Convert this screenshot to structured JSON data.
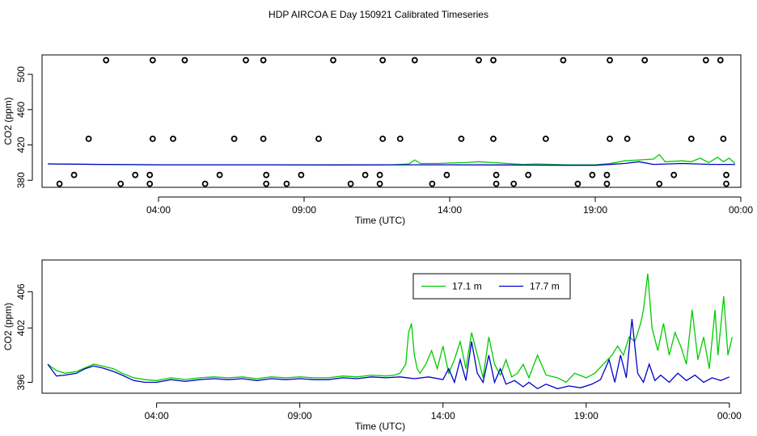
{
  "title": "HDP AIRCOA E  Day 150921  Calibrated Timeseries",
  "chart_data": [
    {
      "type": "line",
      "panel": "top",
      "xlabel": "Time (UTC)",
      "ylabel": "CO2 (ppm)",
      "x_unit": "hours UTC",
      "x_ticks": [
        4,
        9,
        14,
        19,
        24
      ],
      "x_tick_labels": [
        "04:00",
        "09:00",
        "14:00",
        "19:00",
        "00:00"
      ],
      "xlim": [
        0,
        24
      ],
      "y_ticks": [
        380,
        420,
        460,
        500
      ],
      "ylim": [
        372,
        522
      ],
      "grid": false,
      "series": [
        {
          "name": "17.1 m",
          "color": "#00cc00",
          "values": [
            [
              0.2,
              398.5
            ],
            [
              2,
              398
            ],
            [
              4,
              397.5
            ],
            [
              6,
              397.5
            ],
            [
              8,
              397.5
            ],
            [
              10,
              397.3
            ],
            [
              12,
              397.5
            ],
            [
              12.6,
              398.5
            ],
            [
              12.8,
              403
            ],
            [
              13,
              399
            ],
            [
              13.6,
              399
            ],
            [
              14,
              399.5
            ],
            [
              14.5,
              400
            ],
            [
              15,
              401
            ],
            [
              15.5,
              400
            ],
            [
              16,
              399
            ],
            [
              16.5,
              398
            ],
            [
              17,
              398.5
            ],
            [
              18,
              397.5
            ],
            [
              19,
              397.5
            ],
            [
              19.5,
              399
            ],
            [
              20,
              402
            ],
            [
              20.5,
              403
            ],
            [
              21,
              404
            ],
            [
              21.2,
              409
            ],
            [
              21.4,
              401
            ],
            [
              22,
              402
            ],
            [
              22.3,
              401
            ],
            [
              22.6,
              405
            ],
            [
              22.9,
              400
            ],
            [
              23.2,
              406
            ],
            [
              23.4,
              401
            ],
            [
              23.6,
              405
            ],
            [
              23.8,
              399
            ]
          ]
        },
        {
          "name": "17.7 m",
          "color": "#0000cc",
          "values": [
            [
              0.2,
              398.5
            ],
            [
              2,
              398
            ],
            [
              4,
              397.5
            ],
            [
              6,
              397.5
            ],
            [
              8,
              397.5
            ],
            [
              10,
              397.3
            ],
            [
              12,
              397.5
            ],
            [
              14,
              397.5
            ],
            [
              16,
              397.3
            ],
            [
              18,
              397
            ],
            [
              19,
              397
            ],
            [
              20,
              399
            ],
            [
              20.5,
              401
            ],
            [
              21,
              398
            ],
            [
              22,
              399
            ],
            [
              23,
              398
            ],
            [
              23.8,
              398
            ]
          ]
        }
      ],
      "points": [
        {
          "x": 0.6,
          "y": 376
        },
        {
          "x": 1.1,
          "y": 386
        },
        {
          "x": 1.6,
          "y": 427
        },
        {
          "x": 2.2,
          "y": 516
        },
        {
          "x": 2.7,
          "y": 376
        },
        {
          "x": 3.2,
          "y": 386
        },
        {
          "x": 3.7,
          "y": 386
        },
        {
          "x": 3.7,
          "y": 376
        },
        {
          "x": 3.8,
          "y": 427
        },
        {
          "x": 3.8,
          "y": 516
        },
        {
          "x": 4.5,
          "y": 427
        },
        {
          "x": 4.9,
          "y": 516
        },
        {
          "x": 5.6,
          "y": 376
        },
        {
          "x": 6.1,
          "y": 386
        },
        {
          "x": 6.6,
          "y": 427
        },
        {
          "x": 7.0,
          "y": 516
        },
        {
          "x": 7.6,
          "y": 516
        },
        {
          "x": 7.6,
          "y": 427
        },
        {
          "x": 7.7,
          "y": 386
        },
        {
          "x": 7.7,
          "y": 376
        },
        {
          "x": 8.4,
          "y": 376
        },
        {
          "x": 8.9,
          "y": 386
        },
        {
          "x": 9.5,
          "y": 427
        },
        {
          "x": 10.0,
          "y": 516
        },
        {
          "x": 10.6,
          "y": 376
        },
        {
          "x": 11.1,
          "y": 386
        },
        {
          "x": 11.6,
          "y": 386
        },
        {
          "x": 11.6,
          "y": 376
        },
        {
          "x": 11.7,
          "y": 427
        },
        {
          "x": 11.7,
          "y": 516
        },
        {
          "x": 12.3,
          "y": 427
        },
        {
          "x": 12.8,
          "y": 516
        },
        {
          "x": 13.4,
          "y": 376
        },
        {
          "x": 13.9,
          "y": 386
        },
        {
          "x": 14.4,
          "y": 427
        },
        {
          "x": 15.0,
          "y": 516
        },
        {
          "x": 15.5,
          "y": 516
        },
        {
          "x": 15.5,
          "y": 427
        },
        {
          "x": 15.6,
          "y": 386
        },
        {
          "x": 15.6,
          "y": 376
        },
        {
          "x": 16.2,
          "y": 376
        },
        {
          "x": 16.7,
          "y": 386
        },
        {
          "x": 17.3,
          "y": 427
        },
        {
          "x": 17.9,
          "y": 516
        },
        {
          "x": 18.4,
          "y": 376
        },
        {
          "x": 18.9,
          "y": 386
        },
        {
          "x": 19.4,
          "y": 386
        },
        {
          "x": 19.4,
          "y": 376
        },
        {
          "x": 19.5,
          "y": 427
        },
        {
          "x": 19.5,
          "y": 516
        },
        {
          "x": 20.1,
          "y": 427
        },
        {
          "x": 20.7,
          "y": 516
        },
        {
          "x": 21.2,
          "y": 376
        },
        {
          "x": 21.7,
          "y": 386
        },
        {
          "x": 22.3,
          "y": 427
        },
        {
          "x": 22.8,
          "y": 516
        },
        {
          "x": 23.3,
          "y": 516
        },
        {
          "x": 23.4,
          "y": 427
        },
        {
          "x": 23.5,
          "y": 386
        },
        {
          "x": 23.5,
          "y": 376
        }
      ]
    },
    {
      "type": "line",
      "panel": "bottom",
      "xlabel": "Time (UTC)",
      "ylabel": "CO2 (ppm)",
      "x_unit": "hours UTC",
      "x_ticks": [
        4,
        9,
        14,
        19,
        24
      ],
      "x_tick_labels": [
        "04:00",
        "09:00",
        "14:00",
        "19:00",
        "00:00"
      ],
      "xlim": [
        0,
        24.4
      ],
      "y_ticks": [
        396,
        402,
        406
      ],
      "ylim": [
        394.8,
        409.5
      ],
      "grid": false,
      "legend": {
        "position": "top-right-center",
        "entries": [
          "17.1 m",
          "17.7 m"
        ]
      },
      "series": [
        {
          "name": "17.1 m",
          "color": "#00cc00",
          "values": [
            [
              0.2,
              398.0
            ],
            [
              0.5,
              397.3
            ],
            [
              0.8,
              397.0
            ],
            [
              1.2,
              397.2
            ],
            [
              1.5,
              397.6
            ],
            [
              1.8,
              398.0
            ],
            [
              2.1,
              397.8
            ],
            [
              2.5,
              397.5
            ],
            [
              2.8,
              397.0
            ],
            [
              3.2,
              396.5
            ],
            [
              3.6,
              396.3
            ],
            [
              4.0,
              396.2
            ],
            [
              4.5,
              396.5
            ],
            [
              5.0,
              396.3
            ],
            [
              5.5,
              396.5
            ],
            [
              6.0,
              396.6
            ],
            [
              6.5,
              396.5
            ],
            [
              7.0,
              396.6
            ],
            [
              7.5,
              396.4
            ],
            [
              8.0,
              396.6
            ],
            [
              8.5,
              396.5
            ],
            [
              9.0,
              396.6
            ],
            [
              9.5,
              396.5
            ],
            [
              10.0,
              396.5
            ],
            [
              10.5,
              396.7
            ],
            [
              11.0,
              396.6
            ],
            [
              11.5,
              396.8
            ],
            [
              12.0,
              396.7
            ],
            [
              12.3,
              396.8
            ],
            [
              12.5,
              397.0
            ],
            [
              12.7,
              398.0
            ],
            [
              12.8,
              401.5
            ],
            [
              12.9,
              402.5
            ],
            [
              13.0,
              399.0
            ],
            [
              13.1,
              397.5
            ],
            [
              13.2,
              397.0
            ],
            [
              13.4,
              398.0
            ],
            [
              13.6,
              399.5
            ],
            [
              13.8,
              397.5
            ],
            [
              14.0,
              400.0
            ],
            [
              14.2,
              397.0
            ],
            [
              14.4,
              398.5
            ],
            [
              14.6,
              400.5
            ],
            [
              14.8,
              397.5
            ],
            [
              15.0,
              401.5
            ],
            [
              15.2,
              399.0
            ],
            [
              15.4,
              396.5
            ],
            [
              15.6,
              401.0
            ],
            [
              15.8,
              398.0
            ],
            [
              16.0,
              396.8
            ],
            [
              16.2,
              398.5
            ],
            [
              16.4,
              396.6
            ],
            [
              16.6,
              397.0
            ],
            [
              16.8,
              398.0
            ],
            [
              17.0,
              396.5
            ],
            [
              17.3,
              399.0
            ],
            [
              17.6,
              396.8
            ],
            [
              18.0,
              396.5
            ],
            [
              18.3,
              396.0
            ],
            [
              18.6,
              397.0
            ],
            [
              19.0,
              396.5
            ],
            [
              19.3,
              397.0
            ],
            [
              19.6,
              398.0
            ],
            [
              19.9,
              399.0
            ],
            [
              20.1,
              400.0
            ],
            [
              20.3,
              399.0
            ],
            [
              20.5,
              401.0
            ],
            [
              20.7,
              400.5
            ],
            [
              20.9,
              402.5
            ],
            [
              21.0,
              404.0
            ],
            [
              21.15,
              408.0
            ],
            [
              21.3,
              402.0
            ],
            [
              21.5,
              399.5
            ],
            [
              21.7,
              402.5
            ],
            [
              21.9,
              399.0
            ],
            [
              22.1,
              401.5
            ],
            [
              22.3,
              400.0
            ],
            [
              22.5,
              398.0
            ],
            [
              22.7,
              404.0
            ],
            [
              22.9,
              398.5
            ],
            [
              23.1,
              401.0
            ],
            [
              23.3,
              397.5
            ],
            [
              23.5,
              404.0
            ],
            [
              23.6,
              399.0
            ],
            [
              23.8,
              405.5
            ],
            [
              23.95,
              399.0
            ],
            [
              24.1,
              401.0
            ]
          ]
        },
        {
          "name": "17.7 m",
          "color": "#0000cc",
          "values": [
            [
              0.2,
              398.0
            ],
            [
              0.5,
              396.7
            ],
            [
              0.8,
              396.8
            ],
            [
              1.2,
              397.0
            ],
            [
              1.5,
              397.5
            ],
            [
              1.8,
              397.8
            ],
            [
              2.1,
              397.6
            ],
            [
              2.5,
              397.2
            ],
            [
              2.8,
              396.8
            ],
            [
              3.2,
              396.2
            ],
            [
              3.6,
              396.0
            ],
            [
              4.0,
              396.0
            ],
            [
              4.5,
              396.3
            ],
            [
              5.0,
              396.1
            ],
            [
              5.5,
              396.3
            ],
            [
              6.0,
              396.4
            ],
            [
              6.5,
              396.3
            ],
            [
              7.0,
              396.4
            ],
            [
              7.5,
              396.2
            ],
            [
              8.0,
              396.4
            ],
            [
              8.5,
              396.3
            ],
            [
              9.0,
              396.4
            ],
            [
              9.5,
              396.3
            ],
            [
              10.0,
              396.3
            ],
            [
              10.5,
              396.5
            ],
            [
              11.0,
              396.4
            ],
            [
              11.5,
              396.6
            ],
            [
              12.0,
              396.5
            ],
            [
              12.5,
              396.6
            ],
            [
              13.0,
              396.4
            ],
            [
              13.5,
              396.6
            ],
            [
              14.0,
              396.3
            ],
            [
              14.2,
              397.5
            ],
            [
              14.4,
              396.0
            ],
            [
              14.6,
              398.5
            ],
            [
              14.8,
              396.2
            ],
            [
              15.0,
              400.5
            ],
            [
              15.2,
              397.0
            ],
            [
              15.4,
              396.0
            ],
            [
              15.6,
              399.0
            ],
            [
              15.8,
              396.0
            ],
            [
              16.0,
              397.5
            ],
            [
              16.2,
              395.8
            ],
            [
              16.5,
              396.2
            ],
            [
              16.8,
              395.5
            ],
            [
              17.0,
              396.0
            ],
            [
              17.3,
              395.3
            ],
            [
              17.6,
              395.8
            ],
            [
              18.0,
              395.3
            ],
            [
              18.4,
              395.6
            ],
            [
              18.8,
              395.4
            ],
            [
              19.2,
              395.8
            ],
            [
              19.5,
              396.3
            ],
            [
              19.8,
              398.5
            ],
            [
              20.0,
              396.0
            ],
            [
              20.2,
              399.0
            ],
            [
              20.4,
              396.5
            ],
            [
              20.6,
              403.0
            ],
            [
              20.8,
              397.0
            ],
            [
              21.0,
              396.0
            ],
            [
              21.2,
              398.0
            ],
            [
              21.4,
              396.2
            ],
            [
              21.6,
              396.8
            ],
            [
              21.9,
              396.0
            ],
            [
              22.2,
              397.0
            ],
            [
              22.5,
              396.2
            ],
            [
              22.8,
              396.8
            ],
            [
              23.1,
              396.0
            ],
            [
              23.4,
              396.5
            ],
            [
              23.7,
              396.2
            ],
            [
              24.0,
              396.6
            ]
          ]
        }
      ]
    }
  ]
}
